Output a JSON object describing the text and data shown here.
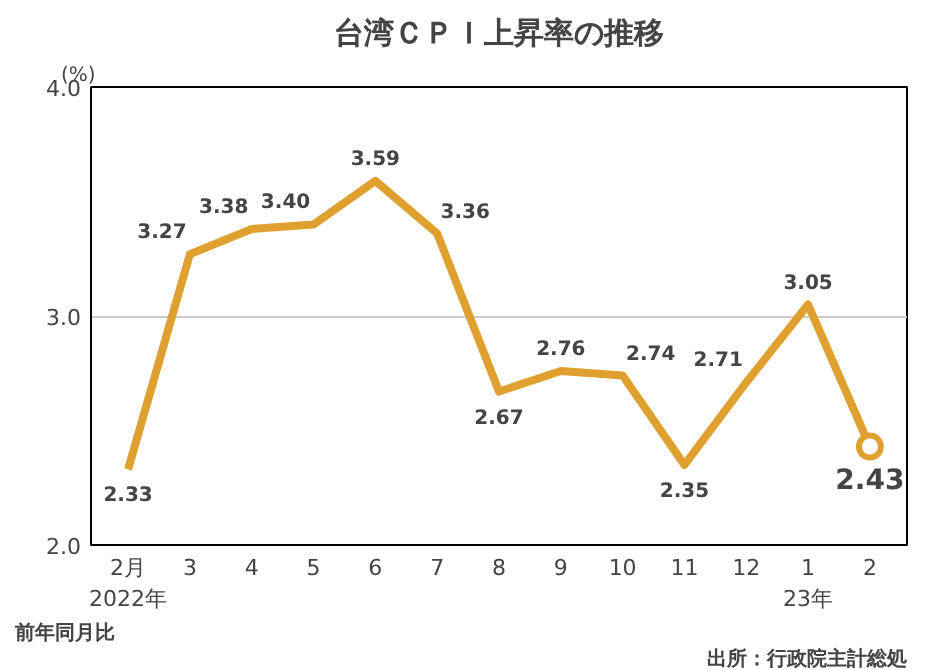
{
  "chart_data": {
    "type": "line",
    "title": "台湾ＣＰＩ上昇率の推移",
    "ylabel": "(%)",
    "categories": [
      "2月",
      "3",
      "4",
      "5",
      "6",
      "7",
      "8",
      "9",
      "10",
      "11",
      "12",
      "1",
      "2"
    ],
    "series": [
      {
        "color": "#e0a030",
        "values": [
          2.33,
          3.27,
          3.38,
          3.4,
          3.59,
          3.36,
          2.67,
          2.76,
          2.74,
          2.35,
          2.71,
          3.05,
          2.43
        ],
        "value_labels": [
          "2.33",
          "3.27",
          "3.38",
          "3.40",
          "3.59",
          "3.36",
          "2.67",
          "2.76",
          "2.74",
          "2.35",
          "2.71",
          "3.05",
          null
        ]
      }
    ],
    "ylim": [
      2,
      4
    ],
    "yticks": [
      {
        "value": 2,
        "label": "2.0"
      },
      {
        "value": 3,
        "label": "3.0"
      },
      {
        "value": 4,
        "label": "4.0"
      }
    ],
    "grid": "y",
    "marker": "none",
    "line_style": "solid",
    "annotations": [
      "2022年",
      "23年",
      "前年同月比",
      "出所：行政院主計総処",
      {
        "text": "2.43",
        "x": "2",
        "y": 2.43
      }
    ]
  }
}
